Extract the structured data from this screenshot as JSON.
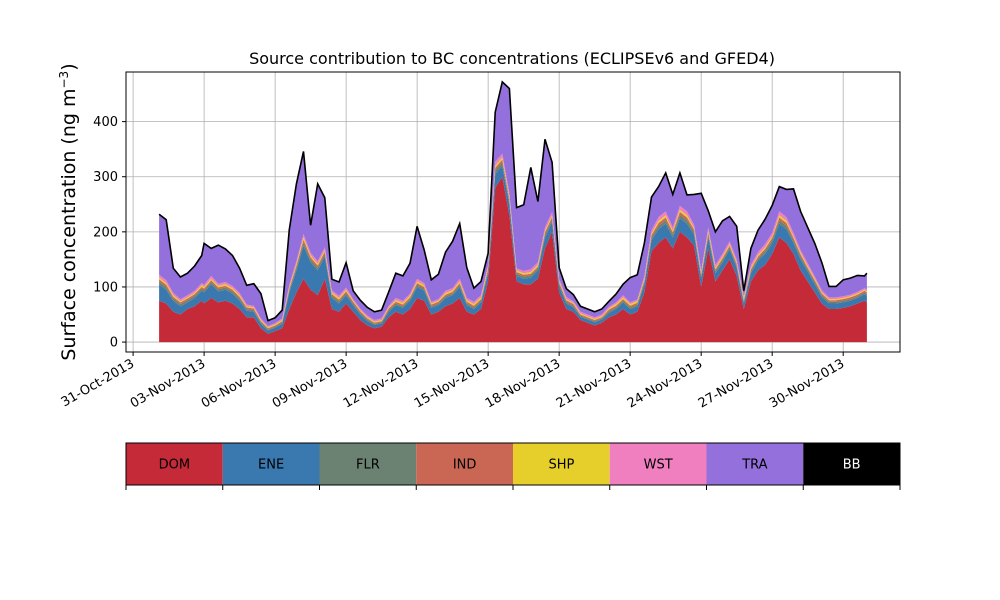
{
  "chart_data": {
    "type": "area",
    "title": "Source contribution to BC concentrations (ECLIPSEv6 and GFED4)",
    "ylabel_main": "Surface concentration (ng m",
    "ylabel_exp": "−3",
    "ylabel_close": ")",
    "xlabel": "",
    "x_tick_labels": [
      "31-Oct-2013",
      "03-Nov-2013",
      "06-Nov-2013",
      "09-Nov-2013",
      "12-Nov-2013",
      "15-Nov-2013",
      "18-Nov-2013",
      "21-Nov-2013",
      "24-Nov-2013",
      "27-Nov-2013",
      "30-Nov-2013"
    ],
    "x_tick_days": [
      0,
      3,
      6,
      9,
      12,
      15,
      18,
      21,
      24,
      27,
      30
    ],
    "y_ticks": [
      0,
      100,
      200,
      300,
      400
    ],
    "xlim_days": [
      -0.3,
      32.4
    ],
    "ylim": [
      -18,
      490
    ],
    "grid": true,
    "legend_position": "below",
    "x_unit_note": "",
    "x": [
      1.1,
      1.4,
      1.7,
      2.0,
      2.3,
      2.6,
      2.9,
      3.0,
      3.3,
      3.6,
      3.9,
      4.2,
      4.5,
      4.8,
      5.1,
      5.4,
      5.7,
      6.0,
      6.3,
      6.6,
      6.9,
      7.2,
      7.5,
      7.8,
      8.1,
      8.4,
      8.7,
      9.0,
      9.3,
      9.6,
      9.9,
      10.2,
      10.5,
      10.8,
      11.1,
      11.4,
      11.7,
      12.0,
      12.3,
      12.6,
      12.9,
      13.2,
      13.5,
      13.8,
      14.1,
      14.4,
      14.7,
      15.0,
      15.3,
      15.6,
      15.9,
      16.2,
      16.5,
      16.8,
      17.1,
      17.4,
      17.7,
      18.0,
      18.3,
      18.6,
      18.9,
      19.2,
      19.5,
      19.8,
      20.1,
      20.4,
      20.7,
      21.0,
      21.3,
      21.6,
      21.9,
      22.2,
      22.5,
      22.8,
      23.1,
      23.4,
      23.7,
      24.0,
      24.3,
      24.6,
      24.9,
      25.2,
      25.5,
      25.8,
      26.1,
      26.4,
      26.7,
      27.0,
      27.3,
      27.6,
      27.9,
      28.2,
      28.5,
      28.8,
      29.1,
      29.4,
      29.7,
      30.0,
      30.3,
      30.6,
      30.9,
      31.0
    ],
    "series": [
      {
        "name": "DOM",
        "color": "#c52a38",
        "values": [
          75,
          70,
          55,
          50,
          60,
          65,
          75,
          70,
          80,
          72,
          75,
          70,
          60,
          45,
          45,
          25,
          15,
          20,
          25,
          60,
          90,
          115,
          95,
          85,
          115,
          60,
          55,
          70,
          55,
          40,
          30,
          25,
          28,
          45,
          55,
          50,
          60,
          80,
          75,
          50,
          55,
          65,
          70,
          80,
          55,
          50,
          60,
          110,
          280,
          300,
          230,
          110,
          105,
          105,
          115,
          170,
          200,
          90,
          60,
          55,
          40,
          35,
          30,
          35,
          45,
          50,
          60,
          50,
          55,
          90,
          165,
          180,
          190,
          170,
          200,
          190,
          175,
          100,
          170,
          110,
          130,
          150,
          120,
          60,
          110,
          130,
          140,
          160,
          190,
          180,
          160,
          130,
          110,
          90,
          70,
          60,
          60,
          62,
          65,
          70,
          75,
          72
        ]
      },
      {
        "name": "ENE",
        "color": "#3a78b0",
        "values": [
          30,
          25,
          20,
          15,
          12,
          15,
          18,
          20,
          25,
          20,
          20,
          18,
          15,
          12,
          10,
          8,
          6,
          6,
          8,
          30,
          40,
          60,
          50,
          45,
          40,
          20,
          15,
          15,
          12,
          10,
          8,
          6,
          6,
          10,
          12,
          12,
          15,
          20,
          18,
          12,
          12,
          15,
          15,
          20,
          12,
          10,
          12,
          15,
          25,
          20,
          20,
          10,
          10,
          12,
          15,
          20,
          18,
          12,
          10,
          8,
          6,
          6,
          6,
          6,
          8,
          10,
          12,
          10,
          10,
          15,
          20,
          25,
          25,
          20,
          25,
          25,
          20,
          15,
          20,
          15,
          15,
          18,
          15,
          10,
          15,
          18,
          20,
          20,
          25,
          25,
          20,
          20,
          18,
          15,
          12,
          10,
          10,
          10,
          10,
          10,
          12,
          12
        ]
      },
      {
        "name": "FLR",
        "color": "#6b8272",
        "values": [
          5,
          5,
          4,
          4,
          4,
          4,
          4,
          4,
          4,
          4,
          4,
          4,
          4,
          3,
          3,
          3,
          2,
          2,
          3,
          4,
          5,
          6,
          5,
          5,
          5,
          4,
          4,
          4,
          3,
          3,
          3,
          2,
          2,
          3,
          3,
          3,
          3,
          4,
          4,
          3,
          3,
          3,
          3,
          4,
          3,
          3,
          3,
          4,
          6,
          6,
          5,
          4,
          4,
          4,
          4,
          5,
          5,
          3,
          3,
          3,
          2,
          2,
          2,
          2,
          3,
          3,
          3,
          3,
          3,
          4,
          5,
          6,
          6,
          5,
          6,
          6,
          5,
          4,
          5,
          4,
          4,
          4,
          4,
          3,
          4,
          4,
          5,
          5,
          6,
          6,
          5,
          5,
          4,
          4,
          3,
          3,
          3,
          3,
          3,
          3,
          3,
          3
        ]
      },
      {
        "name": "IND",
        "color": "#c96654",
        "values": [
          4,
          4,
          3,
          3,
          3,
          3,
          3,
          3,
          3,
          3,
          3,
          3,
          3,
          3,
          3,
          2,
          2,
          2,
          2,
          3,
          4,
          5,
          4,
          4,
          4,
          3,
          3,
          3,
          3,
          3,
          2,
          2,
          2,
          3,
          3,
          3,
          3,
          3,
          3,
          3,
          3,
          3,
          3,
          3,
          3,
          3,
          3,
          4,
          5,
          5,
          5,
          3,
          3,
          3,
          3,
          4,
          4,
          3,
          3,
          3,
          2,
          2,
          2,
          2,
          3,
          3,
          3,
          3,
          3,
          3,
          4,
          5,
          5,
          4,
          5,
          5,
          4,
          3,
          4,
          3,
          3,
          3,
          3,
          3,
          3,
          3,
          4,
          4,
          5,
          5,
          4,
          4,
          3,
          3,
          3,
          3,
          3,
          3,
          3,
          3,
          3,
          3
        ]
      },
      {
        "name": "SHP",
        "color": "#e6cf2a",
        "values": [
          3,
          3,
          3,
          2,
          2,
          2,
          3,
          3,
          3,
          3,
          3,
          3,
          3,
          2,
          2,
          2,
          2,
          2,
          2,
          3,
          3,
          4,
          3,
          3,
          3,
          3,
          3,
          3,
          2,
          2,
          2,
          2,
          2,
          2,
          3,
          3,
          3,
          3,
          3,
          2,
          2,
          3,
          3,
          3,
          3,
          3,
          3,
          3,
          4,
          4,
          4,
          3,
          3,
          3,
          3,
          3,
          3,
          3,
          2,
          2,
          2,
          2,
          2,
          2,
          2,
          3,
          3,
          3,
          3,
          3,
          3,
          4,
          4,
          3,
          4,
          4,
          3,
          3,
          3,
          3,
          3,
          3,
          3,
          3,
          3,
          3,
          3,
          3,
          4,
          4,
          3,
          3,
          3,
          3,
          2,
          2,
          2,
          2,
          2,
          2,
          2,
          2
        ]
      },
      {
        "name": "WST",
        "color": "#f07fbf",
        "values": [
          5,
          5,
          4,
          4,
          4,
          4,
          4,
          4,
          5,
          4,
          4,
          4,
          4,
          3,
          3,
          3,
          2,
          2,
          3,
          4,
          5,
          6,
          5,
          5,
          5,
          4,
          4,
          4,
          3,
          3,
          3,
          3,
          3,
          3,
          4,
          4,
          4,
          5,
          4,
          3,
          3,
          4,
          4,
          5,
          4,
          4,
          4,
          5,
          7,
          7,
          6,
          4,
          4,
          5,
          5,
          6,
          6,
          4,
          4,
          3,
          3,
          3,
          3,
          3,
          3,
          3,
          4,
          3,
          3,
          5,
          6,
          7,
          7,
          6,
          7,
          7,
          6,
          5,
          6,
          5,
          5,
          5,
          5,
          4,
          5,
          5,
          6,
          6,
          7,
          7,
          6,
          5,
          5,
          4,
          4,
          3,
          3,
          3,
          3,
          3,
          3,
          3
        ]
      },
      {
        "name": "TRA",
        "color": "#9370db",
        "values": [
          110,
          110,
          45,
          40,
          40,
          45,
          50,
          75,
          50,
          70,
          60,
          55,
          45,
          35,
          40,
          45,
          10,
          10,
          15,
          100,
          140,
          150,
          50,
          140,
          90,
          20,
          25,
          45,
          15,
          15,
          15,
          15,
          15,
          25,
          45,
          45,
          55,
          95,
          60,
          40,
          45,
          70,
          85,
          100,
          55,
          25,
          25,
          20,
          90,
          130,
          190,
          110,
          120,
          185,
          110,
          160,
          90,
          20,
          15,
          12,
          10,
          10,
          10,
          10,
          10,
          15,
          20,
          45,
          45,
          60,
          60,
          55,
          70,
          60,
          60,
          30,
          55,
          140,
          30,
          60,
          60,
          45,
          60,
          10,
          30,
          40,
          45,
          50,
          45,
          50,
          80,
          70,
          65,
          60,
          50,
          20,
          20,
          30,
          30,
          30,
          22,
          30
        ]
      },
      {
        "name": "BB",
        "color": "#000000",
        "values": [
          0,
          0,
          0,
          0,
          0,
          0,
          0,
          0,
          0,
          0,
          0,
          0,
          0,
          0,
          0,
          0,
          0,
          0,
          0,
          0,
          0,
          0,
          0,
          0,
          0,
          0,
          0,
          0,
          0,
          0,
          0,
          0,
          0,
          0,
          0,
          0,
          0,
          0,
          0,
          0,
          0,
          0,
          0,
          0,
          0,
          0,
          0,
          0,
          0,
          0,
          0,
          0,
          0,
          0,
          0,
          0,
          0,
          0,
          0,
          0,
          0,
          0,
          0,
          0,
          0,
          0,
          0,
          0,
          0,
          0,
          0,
          0,
          0,
          0,
          0,
          0,
          0,
          0,
          0,
          0,
          0,
          0,
          0,
          0,
          0,
          0,
          0,
          0,
          0,
          0,
          0,
          0,
          0,
          0,
          0,
          0,
          0,
          0,
          0,
          0,
          0,
          0
        ]
      }
    ],
    "legend": {
      "items": [
        "DOM",
        "ENE",
        "FLR",
        "IND",
        "SHP",
        "WST",
        "TRA",
        "BB"
      ],
      "text_colors": [
        "#000000",
        "#000000",
        "#000000",
        "#000000",
        "#000000",
        "#000000",
        "#000000",
        "#ffffff"
      ]
    }
  }
}
